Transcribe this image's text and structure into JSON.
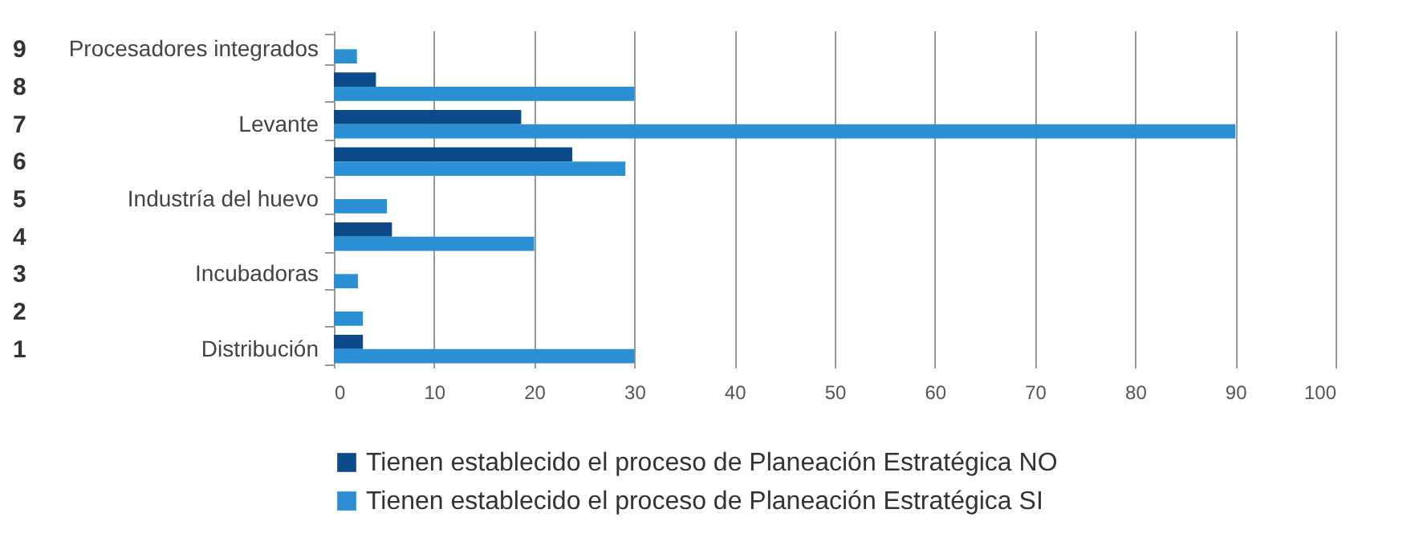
{
  "chart_data": {
    "type": "bar",
    "orientation": "horizontal",
    "categories": [
      "Procesadores integrados",
      null,
      "Levante",
      null,
      "Industría del huevo",
      null,
      "Incubadoras",
      null,
      "Distribución"
    ],
    "series": [
      {
        "name": "Tienen establecido el proceso de Planeación Estratégica NO",
        "color": "#0d4a8a",
        "values": [
          null,
          4.2,
          18.7,
          23.8,
          null,
          5.8,
          null,
          null,
          2.9
        ]
      },
      {
        "name": "Tienen establecido el proceso de Planeación Estratégica SI",
        "color": "#2b8fd4",
        "values": [
          2.3,
          30,
          90,
          29.1,
          5.3,
          20,
          2.4,
          2.9,
          30
        ]
      }
    ],
    "annotations": [
      "9",
      "8",
      "7",
      "6",
      "5",
      "4",
      "3",
      "2",
      "1"
    ],
    "xlim": [
      0,
      100
    ],
    "xticks": [
      0,
      10,
      20,
      30,
      40,
      50,
      60,
      70,
      80,
      90,
      100
    ],
    "grid": "x",
    "legend": "bottom"
  }
}
